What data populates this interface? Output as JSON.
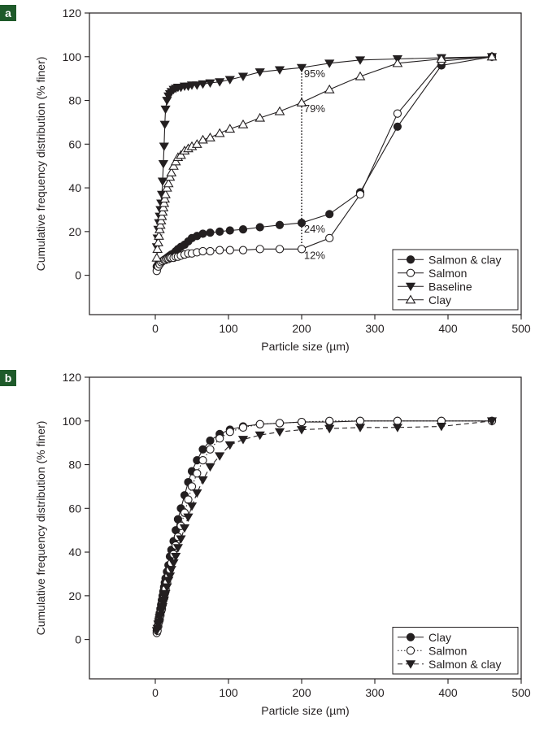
{
  "figure": {
    "panels": [
      {
        "tag": "a"
      },
      {
        "tag": "b"
      }
    ]
  },
  "chart_data": [
    {
      "type": "line",
      "panel": "a",
      "xlabel": "Particle size (µm)",
      "ylabel": "Cumulative frequency distribution (% finer)",
      "xlim": [
        -90,
        500
      ],
      "ylim": [
        -18,
        120
      ],
      "xticks": [
        0,
        100,
        200,
        300,
        400,
        500
      ],
      "yticks": [
        0,
        20,
        40,
        60,
        80,
        100,
        120
      ],
      "grid": false,
      "legend_position": "bottom-right",
      "series": [
        {
          "name": "Salmon & clay",
          "marker": "filled-circle",
          "line": "solid",
          "x": [
            2,
            4,
            6,
            8,
            10,
            12,
            14,
            16,
            18,
            20,
            22,
            25,
            28,
            31,
            35,
            40,
            45,
            50,
            57,
            65,
            75,
            88,
            102,
            120,
            143,
            170,
            200,
            238,
            280,
            331,
            391,
            460
          ],
          "y": [
            4,
            5,
            5.5,
            6,
            6.5,
            7,
            7.5,
            8,
            8.5,
            9,
            9.5,
            10,
            11,
            12,
            13,
            14,
            15.5,
            17,
            18,
            19,
            19.5,
            20,
            20.5,
            21,
            22,
            23,
            24,
            28,
            38,
            68,
            96,
            100
          ]
        },
        {
          "name": "Salmon",
          "marker": "open-circle",
          "line": "solid",
          "x": [
            2,
            4,
            6,
            8,
            10,
            12,
            14,
            16,
            18,
            20,
            22,
            25,
            28,
            31,
            35,
            40,
            45,
            50,
            57,
            65,
            75,
            88,
            102,
            120,
            143,
            170,
            200,
            238,
            280,
            331,
            391,
            460
          ],
          "y": [
            2,
            4,
            5,
            6,
            6.5,
            7,
            7,
            7.5,
            7.5,
            8,
            8,
            8,
            8.5,
            8.5,
            9,
            9.5,
            10,
            10,
            10.5,
            11,
            11,
            11.5,
            11.5,
            11.5,
            12,
            12,
            12,
            17,
            37,
            74,
            98,
            100
          ]
        },
        {
          "name": "Baseline",
          "marker": "filled-triangle-down",
          "line": "solid",
          "x": [
            2,
            3,
            4,
            5,
            6,
            7,
            8,
            9,
            10,
            11,
            12,
            13,
            14,
            16,
            18,
            20,
            22,
            25,
            28,
            31,
            35,
            40,
            45,
            50,
            57,
            65,
            75,
            88,
            102,
            120,
            143,
            170,
            200,
            238,
            280,
            331,
            391,
            460
          ],
          "y": [
            13,
            17,
            21,
            24,
            27,
            30,
            33,
            37,
            43,
            51,
            59,
            69,
            76,
            80,
            82,
            83,
            84,
            85,
            85.5,
            86,
            86,
            86.5,
            86.5,
            87,
            87,
            87.5,
            88,
            88.5,
            89.5,
            91,
            93,
            94,
            95,
            97,
            98.5,
            99,
            99.5,
            100
          ]
        },
        {
          "name": "Clay",
          "marker": "open-triangle-up",
          "line": "solid",
          "x": [
            2,
            3,
            4,
            5,
            6,
            7,
            8,
            9,
            10,
            11,
            12,
            13,
            14,
            16,
            18,
            20,
            22,
            25,
            28,
            31,
            35,
            40,
            45,
            50,
            57,
            65,
            75,
            88,
            102,
            120,
            143,
            170,
            200,
            238,
            280,
            331,
            391,
            460
          ],
          "y": [
            8,
            12,
            15,
            18,
            21,
            23,
            25,
            27,
            29,
            31,
            33,
            35,
            37,
            40,
            42,
            45,
            47,
            50,
            52,
            54,
            55,
            57,
            58,
            59,
            60,
            62,
            63,
            65,
            67,
            69,
            72,
            75,
            79,
            85,
            91,
            97,
            99,
            100
          ]
        }
      ],
      "annotations": [
        {
          "text": "95%",
          "x": 201,
          "y": 95
        },
        {
          "text": "79%",
          "x": 201,
          "y": 79
        },
        {
          "text": "24%",
          "x": 201,
          "y": 24
        },
        {
          "text": "12%",
          "x": 201,
          "y": 12
        }
      ],
      "reference_line": {
        "style": "dotted",
        "x": 200,
        "y_from": 12,
        "y_to": 95
      }
    },
    {
      "type": "line",
      "panel": "b",
      "xlabel": "Particle size (µm)",
      "ylabel": "Cumulative frequency distribution (% finer)",
      "xlim": [
        -90,
        500
      ],
      "ylim": [
        -18,
        120
      ],
      "xticks": [
        0,
        100,
        200,
        300,
        400,
        500
      ],
      "yticks": [
        0,
        20,
        40,
        60,
        80,
        100,
        120
      ],
      "grid": false,
      "legend_position": "bottom-right",
      "series": [
        {
          "name": "Clay",
          "marker": "filled-circle",
          "line": "solid",
          "x": [
            2,
            3,
            4,
            5,
            6,
            7,
            8,
            9,
            10,
            11,
            12,
            13,
            14,
            16,
            18,
            20,
            22,
            25,
            28,
            31,
            35,
            40,
            45,
            50,
            57,
            65,
            75,
            88,
            102,
            120,
            143,
            170,
            200,
            238,
            280,
            331,
            391,
            460
          ],
          "y": [
            4,
            6,
            8,
            10,
            12,
            14,
            16,
            18,
            20,
            22,
            24,
            26,
            28,
            31,
            34,
            38,
            41,
            45,
            50,
            55,
            60,
            66,
            72,
            77,
            82,
            87,
            91,
            94,
            96,
            97.5,
            98.5,
            99,
            99.5,
            99.5,
            100,
            100,
            100,
            100
          ]
        },
        {
          "name": "Salmon",
          "marker": "open-circle",
          "line": "dotted",
          "x": [
            2,
            3,
            4,
            5,
            6,
            7,
            8,
            9,
            10,
            11,
            12,
            13,
            14,
            16,
            18,
            20,
            22,
            25,
            28,
            31,
            35,
            40,
            45,
            50,
            57,
            65,
            75,
            88,
            102,
            120,
            143,
            170,
            200,
            238,
            280,
            331,
            391,
            460
          ],
          "y": [
            3,
            4,
            6,
            8,
            9,
            11,
            13,
            14,
            16,
            18,
            19,
            21,
            23,
            26,
            29,
            32,
            35,
            39,
            43,
            47,
            52,
            58,
            64,
            70,
            76,
            82,
            87,
            92,
            95,
            97,
            98.5,
            99,
            99.5,
            100,
            100,
            100,
            100,
            100
          ]
        },
        {
          "name": "Salmon & clay",
          "marker": "filled-triangle-down",
          "line": "dashed",
          "x": [
            2,
            3,
            4,
            5,
            6,
            7,
            8,
            9,
            10,
            11,
            12,
            13,
            14,
            16,
            18,
            20,
            22,
            25,
            28,
            31,
            35,
            40,
            45,
            50,
            57,
            65,
            75,
            88,
            102,
            120,
            143,
            170,
            200,
            238,
            280,
            331,
            391,
            460
          ],
          "y": [
            4,
            5,
            7,
            8,
            10,
            11,
            13,
            14,
            15,
            17,
            18,
            20,
            21,
            24,
            27,
            29,
            32,
            35,
            38,
            42,
            46,
            51,
            56,
            61,
            67,
            73,
            79,
            84,
            89,
            91.5,
            93.5,
            95,
            96,
            96.5,
            97,
            97,
            97.5,
            100
          ]
        }
      ]
    }
  ]
}
